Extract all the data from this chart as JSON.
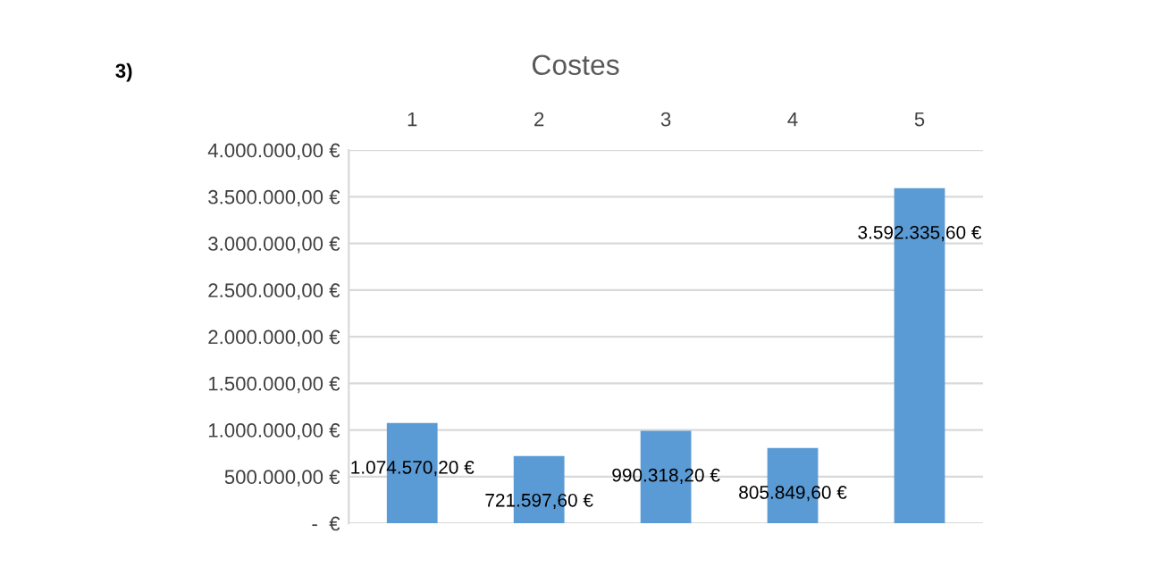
{
  "chart_data": {
    "type": "bar",
    "title": "Costes",
    "categories": [
      "1",
      "2",
      "3",
      "4",
      "5"
    ],
    "values": [
      1074570.2,
      721597.6,
      990318.2,
      805849.6,
      3592335.6
    ],
    "value_labels": [
      "1.074.570,20 €",
      "721.597,60 €",
      "990.318,20 €",
      "805.849,60 €",
      "3.592.335,60 €"
    ],
    "color": "#5b9bd5",
    "ylim": [
      0,
      4000000
    ],
    "yticks": [
      {
        "value": 0,
        "label": "-  €"
      },
      {
        "value": 500000,
        "label": "500.000,00 €"
      },
      {
        "value": 1000000,
        "label": "1.000.000,00 €"
      },
      {
        "value": 1500000,
        "label": "1.500.000,00 €"
      },
      {
        "value": 2000000,
        "label": "2.000.000,00 €"
      },
      {
        "value": 2500000,
        "label": "2.500.000,00 €"
      },
      {
        "value": 3000000,
        "label": "3.000.000,00 €"
      },
      {
        "value": 3500000,
        "label": "3.500.000,00 €"
      },
      {
        "value": 4000000,
        "label": "4.000.000,00 €"
      }
    ],
    "grid": "y",
    "annotations": [
      "3)"
    ]
  }
}
